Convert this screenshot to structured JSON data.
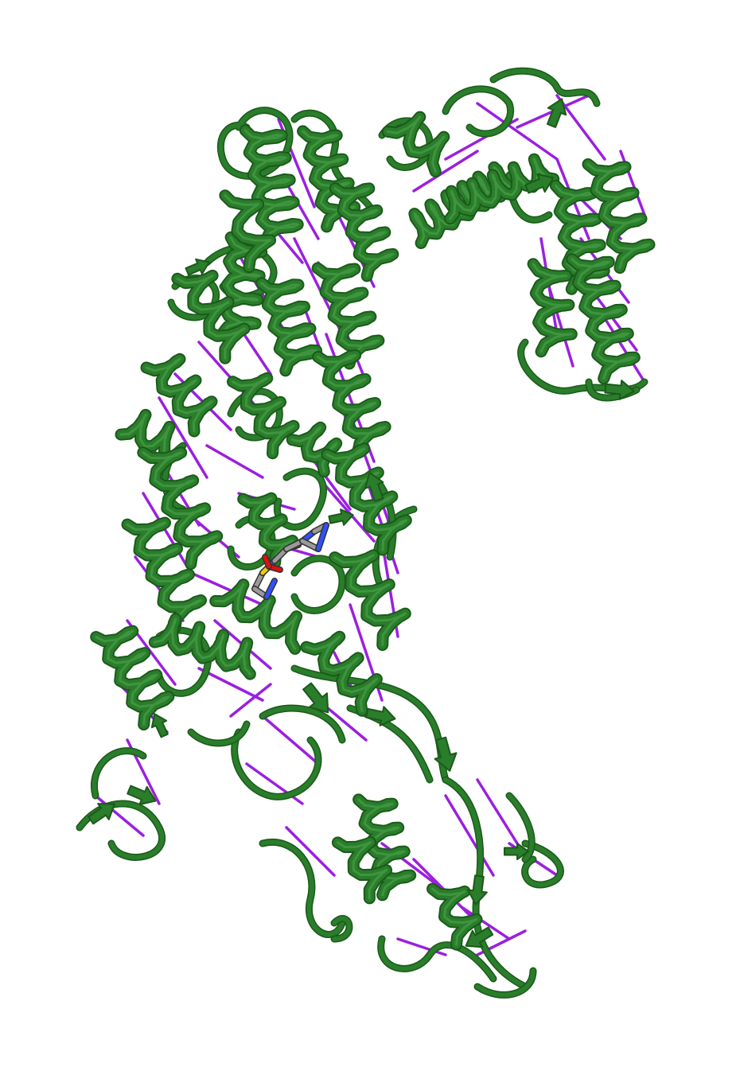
{
  "image": {
    "subject": "protein-ribbon-structure",
    "background_color": "#ffffff",
    "colors": {
      "ribbon": "#2a7d2a",
      "ribbon_dark": "#1a5a1a",
      "ribbon_highlight": "#49a049",
      "crosslinks": "#9b1fe0",
      "ligand_carbon": "#9a9a9a",
      "ligand_nitrogen": "#3050f8",
      "ligand_oxygen": "#e01010",
      "ligand_sulfur": "#e8d000"
    }
  }
}
